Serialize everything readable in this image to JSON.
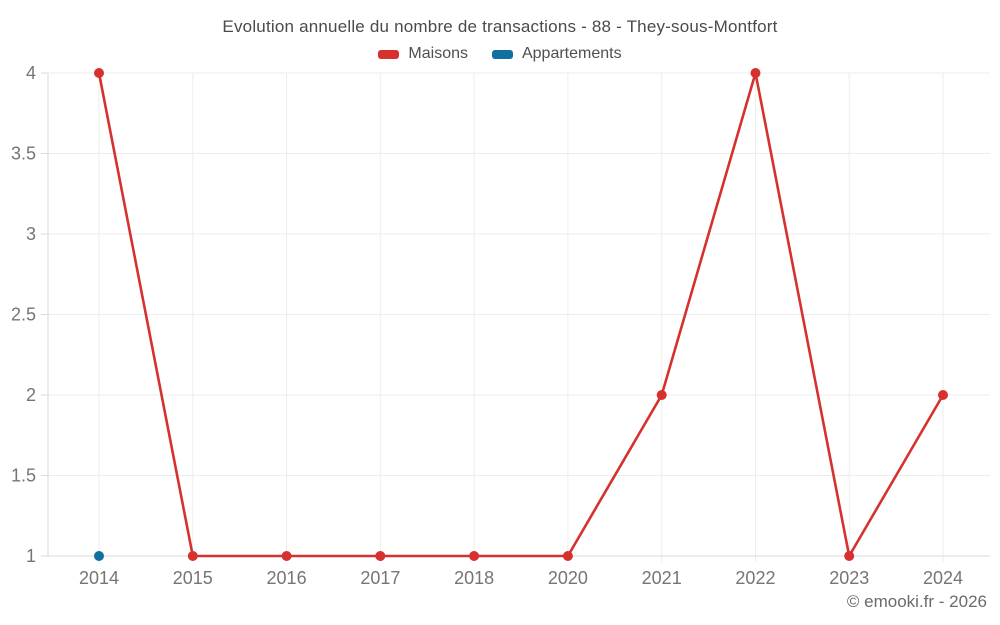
{
  "title": "Evolution annuelle du nombre de transactions - 88 - They-sous-Montfort",
  "copyright": "© emooki.fr - 2026",
  "chart_data": {
    "type": "line",
    "title": "Evolution annuelle du nombre de transactions - 88 - They-sous-Montfort",
    "categories": [
      "2014",
      "2015",
      "2016",
      "2017",
      "2018",
      "2020",
      "2021",
      "2022",
      "2023",
      "2024"
    ],
    "series": [
      {
        "name": "Maisons",
        "color": "#d6312e",
        "values": [
          4,
          1,
          1,
          1,
          1,
          1,
          2,
          4,
          1,
          2
        ]
      },
      {
        "name": "Appartements",
        "color": "#11709f",
        "values": [
          1,
          null,
          null,
          null,
          null,
          null,
          null,
          null,
          null,
          null
        ]
      }
    ],
    "ylim": [
      1,
      4
    ],
    "yticks": [
      1,
      1.5,
      2,
      2.5,
      3,
      3.5,
      4
    ],
    "xlabel": "",
    "ylabel": "",
    "grid": true,
    "legend_position": "top",
    "colors": {
      "gridline": "#ededed",
      "axis_line": "#d9d9d9",
      "axis_text": "#757575"
    }
  }
}
